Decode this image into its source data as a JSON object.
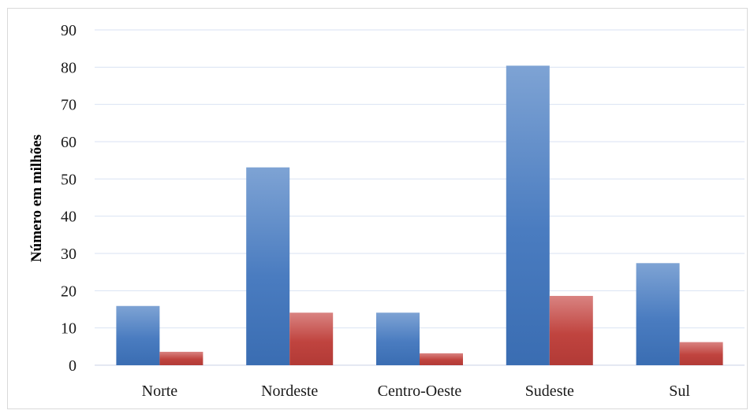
{
  "chart_data": {
    "type": "bar",
    "ylabel": "Número em milhões",
    "xlabel": "",
    "categories": [
      "Norte",
      "Nordeste",
      "Centro-Oeste",
      "Sudeste",
      "Sul"
    ],
    "series": [
      {
        "values": [
          15.9,
          53.1,
          14.1,
          80.4,
          27.4
        ],
        "color": "#4f81bd"
      },
      {
        "values": [
          3.6,
          14.1,
          3.2,
          18.6,
          6.2
        ],
        "color": "#c0504d"
      }
    ],
    "ylim": [
      0,
      90
    ],
    "yticks": [
      "0",
      "10",
      "20",
      "30",
      "40",
      "50",
      "60",
      "70",
      "80",
      "90"
    ],
    "grid": true,
    "legend": "none"
  }
}
